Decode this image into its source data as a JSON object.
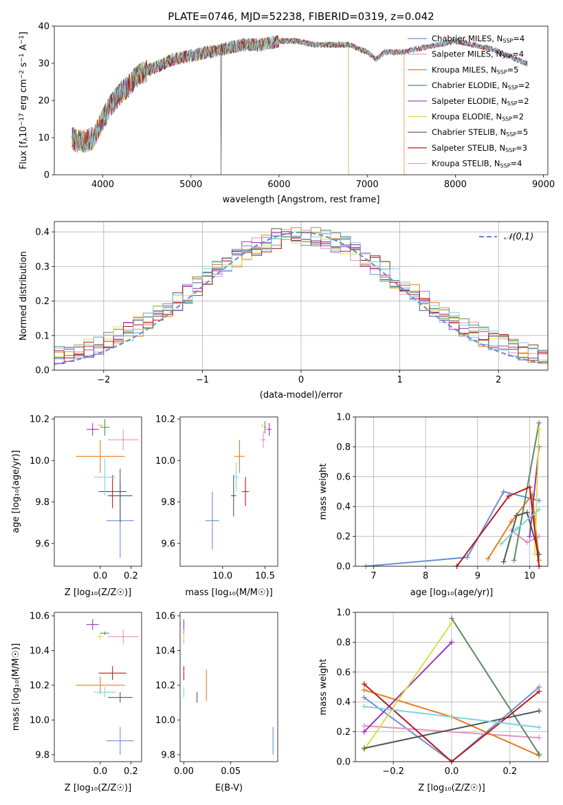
{
  "chart_data": [
    {
      "type": "line",
      "title": "PLATE=0746, MJD=52238, FIBERID=0319, z=0.042",
      "xlabel": "wavelength [Angstrom, rest frame]",
      "ylabel_parts": [
        "Flux [f",
        "λ",
        "10",
        "−17",
        " erg cm",
        "−2",
        " s",
        "−1",
        " A",
        "−1",
        "]"
      ],
      "xlim": [
        3450,
        9050
      ],
      "ylim": [
        0,
        40
      ],
      "xticks": [
        4000,
        5000,
        6000,
        7000,
        8000,
        9000
      ],
      "yticks": [
        0,
        10,
        20,
        30,
        40
      ],
      "grid": false,
      "legend_position": "top-right",
      "spectrum_anchors": {
        "x": [
          3650,
          3700,
          3800,
          3900,
          4000,
          4100,
          4200,
          4300,
          4400,
          4600,
          4800,
          5000,
          5200,
          5400,
          5600,
          5800,
          6000,
          6200,
          6400,
          6600,
          6800,
          7000,
          7100,
          7200,
          7400,
          7600,
          7800,
          8000,
          8200,
          8400,
          8600,
          8800
        ],
        "y": [
          10,
          9,
          9,
          10,
          15,
          19,
          22,
          24,
          27,
          29,
          31,
          32,
          33,
          34,
          35,
          35,
          36,
          36,
          35,
          35,
          35,
          33,
          31,
          33,
          33,
          34,
          35,
          36,
          35,
          34,
          32,
          30
        ]
      },
      "series": [
        {
          "name_prefix": "Chabrier MILES, N",
          "name_sub": "SSP",
          "name_suffix": "=4",
          "color": "#6a8fd6",
          "end": 9050,
          "spike": null
        },
        {
          "name_prefix": "Salpeter MILES, N",
          "name_sub": "SSP",
          "name_suffix": "=4",
          "color": "#e490c0",
          "end": 9050,
          "spike": null
        },
        {
          "name_prefix": "Kroupa MILES, N",
          "name_sub": "SSP",
          "name_suffix": "=5",
          "color": "#e57c20",
          "end": 7420,
          "spike": null
        },
        {
          "name_prefix": "Chabrier ELODIE, N",
          "name_sub": "SSP",
          "name_suffix": "=2",
          "color": "#5a8a60",
          "end": 6790,
          "spike": null
        },
        {
          "name_prefix": "Salpeter ELODIE, N",
          "name_sub": "SSP",
          "name_suffix": "=2",
          "color": "#9b30b8",
          "end": 6790,
          "spike": null
        },
        {
          "name_prefix": "Kroupa ELODIE, N",
          "name_sub": "SSP",
          "name_suffix": "=2",
          "color": "#d8e048",
          "end": 6790,
          "spike": null
        },
        {
          "name_prefix": "Chabrier STELIB, N",
          "name_sub": "SSP",
          "name_suffix": "=5",
          "color": "#555555",
          "end": 8820,
          "spike": 5340
        },
        {
          "name_prefix": "Salpeter STELIB, N",
          "name_sub": "SSP",
          "name_suffix": "=3",
          "color": "#b51a1a",
          "end": 8820,
          "spike": null
        },
        {
          "name_prefix": "Kroupa STELIB, N",
          "name_sub": "SSP",
          "name_suffix": "=4",
          "color": "#7fd4dc",
          "end": 8820,
          "spike": null
        }
      ]
    },
    {
      "type": "step",
      "xlabel": "(data-model)/error",
      "ylabel": "Normed distribution",
      "xlim": [
        -2.5,
        2.5
      ],
      "ylim": [
        0,
        0.43
      ],
      "xticks": [
        -2,
        -1,
        0,
        1,
        2
      ],
      "yticks": [
        0.0,
        0.1,
        0.2,
        0.3,
        0.4
      ],
      "grid": true,
      "legend_position": "top-right",
      "reference": {
        "label": "𝒩(0,1)",
        "color": "#6a8fd6"
      },
      "bin_width": 0.1
    },
    {
      "type": "errorbar",
      "xlabel": "Z [log₁₀(Z/Z☉)]",
      "ylabel": "age  [log₁₀(age/yr)]",
      "xlim": [
        -0.3,
        0.27
      ],
      "ylim": [
        9.49,
        10.21
      ],
      "xticks": [
        0.0,
        0.2
      ],
      "yticks": [
        9.6,
        9.8,
        10.0,
        10.2
      ],
      "points": [
        {
          "color": "#6a8fd6",
          "x": 0.13,
          "xerr": 0.09,
          "y": 9.71,
          "yerr": 0.18
        },
        {
          "color": "#e490c0",
          "x": 0.15,
          "xerr": 0.1,
          "y": 10.1,
          "yerr": 0.05
        },
        {
          "color": "#e57c20",
          "x": 0.0,
          "xerr": 0.16,
          "y": 10.02,
          "yerr": 0.08
        },
        {
          "color": "#5a8a60",
          "x": 0.03,
          "xerr": 0.03,
          "y": 10.16,
          "yerr": 0.04
        },
        {
          "color": "#9b30b8",
          "x": -0.05,
          "xerr": 0.04,
          "y": 10.15,
          "yerr": 0.03
        },
        {
          "color": "#d8e048",
          "x": 0.0,
          "xerr": 0.02,
          "y": 10.17,
          "yerr": 0.01
        },
        {
          "color": "#555555",
          "x": 0.13,
          "xerr": 0.08,
          "y": 9.83,
          "yerr": 0.13
        },
        {
          "color": "#b51a1a",
          "x": 0.08,
          "xerr": 0.09,
          "y": 9.85,
          "yerr": 0.08
        },
        {
          "color": "#7fd4dc",
          "x": 0.03,
          "xerr": 0.07,
          "y": 9.92,
          "yerr": 0.09
        }
      ]
    },
    {
      "type": "errorbar",
      "xlabel": "mass [log₁₀(M/M☉)]",
      "xlim": [
        9.5,
        10.65
      ],
      "ylim": [
        9.49,
        10.21
      ],
      "xticks": [
        10.0,
        10.5
      ],
      "yticks": [
        9.6,
        9.8,
        10.0,
        10.2
      ],
      "points": [
        {
          "color": "#6a8fd6",
          "x": 9.88,
          "xerr": 0.08,
          "y": 9.71,
          "yerr": 0.14
        },
        {
          "color": "#e490c0",
          "x": 10.48,
          "xerr": 0.03,
          "y": 10.1,
          "yerr": 0.04
        },
        {
          "color": "#e57c20",
          "x": 10.2,
          "xerr": 0.06,
          "y": 10.02,
          "yerr": 0.08
        },
        {
          "color": "#5a8a60",
          "x": 10.5,
          "xerr": 0.01,
          "y": 10.16,
          "yerr": 0.03
        },
        {
          "color": "#9b30b8",
          "x": 10.55,
          "xerr": 0.03,
          "y": 10.15,
          "yerr": 0.03
        },
        {
          "color": "#d8e048",
          "x": 10.47,
          "xerr": 0.01,
          "y": 10.17,
          "yerr": 0.01
        },
        {
          "color": "#555555",
          "x": 10.13,
          "xerr": 0.03,
          "y": 9.83,
          "yerr": 0.1
        },
        {
          "color": "#b51a1a",
          "x": 10.27,
          "xerr": 0.04,
          "y": 9.85,
          "yerr": 0.07
        },
        {
          "color": "#7fd4dc",
          "x": 10.16,
          "xerr": 0.03,
          "y": 9.92,
          "yerr": 0.07
        }
      ]
    },
    {
      "type": "line",
      "xlabel": "age  [log₁₀(age/yr)]",
      "ylabel": "mass weight",
      "xlim": [
        6.65,
        10.35
      ],
      "ylim": [
        0,
        1.0
      ],
      "xticks": [
        7,
        8,
        9,
        10
      ],
      "yticks": [
        0.0,
        0.2,
        0.4,
        0.6,
        0.8,
        1.0
      ],
      "grid": true,
      "series": [
        {
          "color": "#6a8fd6",
          "x": [
            6.85,
            8.8,
            9.5,
            10.18
          ],
          "y": [
            0.0,
            0.06,
            0.5,
            0.44
          ]
        },
        {
          "color": "#e490c0",
          "x": [
            9.65,
            9.95,
            10.18
          ],
          "y": [
            0.24,
            0.16,
            0.2
          ]
        },
        {
          "color": "#e57c20",
          "x": [
            9.2,
            9.65,
            10.05,
            10.18
          ],
          "y": [
            0.05,
            0.3,
            0.48,
            0.04
          ]
        },
        {
          "color": "#5a8a60",
          "x": [
            9.7,
            10.18
          ],
          "y": [
            0.04,
            0.96
          ]
        },
        {
          "color": "#9b30b8",
          "x": [
            10.0,
            10.18
          ],
          "y": [
            0.2,
            0.8
          ]
        },
        {
          "color": "#d8e048",
          "x": [
            10.1,
            10.18
          ],
          "y": [
            0.08,
            0.92
          ]
        },
        {
          "color": "#555555",
          "x": [
            9.5,
            9.75,
            9.95,
            10.18
          ],
          "y": [
            0.03,
            0.34,
            0.36,
            0.08
          ]
        },
        {
          "color": "#b51a1a",
          "x": [
            8.6,
            9.6,
            10.0,
            10.18
          ],
          "y": [
            0.0,
            0.47,
            0.53,
            0.0
          ]
        },
        {
          "color": "#7fd4dc",
          "x": [
            9.45,
            9.75,
            10.18
          ],
          "y": [
            0.15,
            0.25,
            0.38
          ]
        }
      ]
    },
    {
      "type": "errorbar",
      "xlabel": "Z [log₁₀(Z/Z☉)]",
      "ylabel": "mass [log₁₀(M/M☉)]",
      "xlim": [
        -0.3,
        0.27
      ],
      "ylim": [
        9.76,
        10.62
      ],
      "xticks": [
        0.0,
        0.2
      ],
      "yticks": [
        9.8,
        10.0,
        10.2,
        10.4,
        10.6
      ],
      "points": [
        {
          "color": "#6a8fd6",
          "x": 0.13,
          "xerr": 0.09,
          "y": 9.88,
          "yerr": 0.08
        },
        {
          "color": "#e490c0",
          "x": 0.15,
          "xerr": 0.1,
          "y": 10.48,
          "yerr": 0.04
        },
        {
          "color": "#e57c20",
          "x": 0.0,
          "xerr": 0.16,
          "y": 10.2,
          "yerr": 0.05
        },
        {
          "color": "#5a8a60",
          "x": 0.03,
          "xerr": 0.03,
          "y": 10.5,
          "yerr": 0.01
        },
        {
          "color": "#9b30b8",
          "x": -0.05,
          "xerr": 0.04,
          "y": 10.55,
          "yerr": 0.03
        },
        {
          "color": "#d8e048",
          "x": 0.0,
          "xerr": 0.02,
          "y": 10.48,
          "yerr": 0.02
        },
        {
          "color": "#555555",
          "x": 0.13,
          "xerr": 0.08,
          "y": 10.13,
          "yerr": 0.03
        },
        {
          "color": "#b51a1a",
          "x": 0.08,
          "xerr": 0.09,
          "y": 10.27,
          "yerr": 0.04
        },
        {
          "color": "#7fd4dc",
          "x": 0.03,
          "xerr": 0.07,
          "y": 10.16,
          "yerr": 0.03
        }
      ]
    },
    {
      "type": "errorbar",
      "xlabel": "E(B-V)",
      "xlim": [
        -0.004,
        0.1
      ],
      "ylim": [
        9.76,
        10.62
      ],
      "xticks": [
        0.0,
        0.05
      ],
      "yticks": [
        9.8,
        10.0,
        10.2,
        10.4,
        10.6
      ],
      "points": [
        {
          "color": "#6a8fd6",
          "x": 0.095,
          "xerr": 0.0,
          "y": 9.88,
          "yerr": 0.08
        },
        {
          "color": "#e490c0",
          "x": 0.0,
          "xerr": 0.0,
          "y": 10.48,
          "yerr": 0.04
        },
        {
          "color": "#e57c20",
          "x": 0.024,
          "xerr": 0.0,
          "y": 10.2,
          "yerr": 0.09
        },
        {
          "color": "#5a8a60",
          "x": 0.0,
          "xerr": 0.0,
          "y": 10.5,
          "yerr": 0.01
        },
        {
          "color": "#9b30b8",
          "x": 0.0,
          "xerr": 0.0,
          "y": 10.55,
          "yerr": 0.03
        },
        {
          "color": "#d8e048",
          "x": 0.0,
          "xerr": 0.0,
          "y": 10.48,
          "yerr": 0.02
        },
        {
          "color": "#555555",
          "x": 0.014,
          "xerr": 0.0,
          "y": 10.13,
          "yerr": 0.03
        },
        {
          "color": "#b51a1a",
          "x": 0.0,
          "xerr": 0.0,
          "y": 10.27,
          "yerr": 0.04
        },
        {
          "color": "#7fd4dc",
          "x": 0.0,
          "xerr": 0.0,
          "y": 10.16,
          "yerr": 0.03
        }
      ]
    },
    {
      "type": "line",
      "xlabel": "Z [log₁₀(Z/Z☉)]",
      "ylabel": "mass weight",
      "xlim": [
        -0.33,
        0.33
      ],
      "ylim": [
        0,
        1.0
      ],
      "xticks": [
        -0.2,
        0.0,
        0.2
      ],
      "yticks": [
        0.0,
        0.2,
        0.4,
        0.6,
        0.8,
        1.0
      ],
      "grid": true,
      "series": [
        {
          "color": "#6a8fd6",
          "x": [
            -0.3,
            0.0,
            0.3
          ],
          "y": [
            0.43,
            0.0,
            0.5
          ]
        },
        {
          "color": "#e490c0",
          "x": [
            -0.3,
            0.3
          ],
          "y": [
            0.24,
            0.16
          ]
        },
        {
          "color": "#e57c20",
          "x": [
            -0.3,
            0.0,
            0.3
          ],
          "y": [
            0.48,
            0.3,
            0.04
          ]
        },
        {
          "color": "#5a8a60",
          "x": [
            0.0,
            0.3
          ],
          "y": [
            0.96,
            0.05
          ]
        },
        {
          "color": "#9b30b8",
          "x": [
            -0.3,
            0.0
          ],
          "y": [
            0.2,
            0.8
          ]
        },
        {
          "color": "#d8e048",
          "x": [
            -0.3,
            0.0
          ],
          "y": [
            0.08,
            0.93
          ]
        },
        {
          "color": "#555555",
          "x": [
            -0.3,
            0.3
          ],
          "y": [
            0.09,
            0.34
          ]
        },
        {
          "color": "#b51a1a",
          "x": [
            -0.3,
            0.0,
            0.3
          ],
          "y": [
            0.52,
            0.0,
            0.47
          ]
        },
        {
          "color": "#7fd4dc",
          "x": [
            -0.3,
            0.3
          ],
          "y": [
            0.37,
            0.23
          ]
        }
      ]
    }
  ]
}
